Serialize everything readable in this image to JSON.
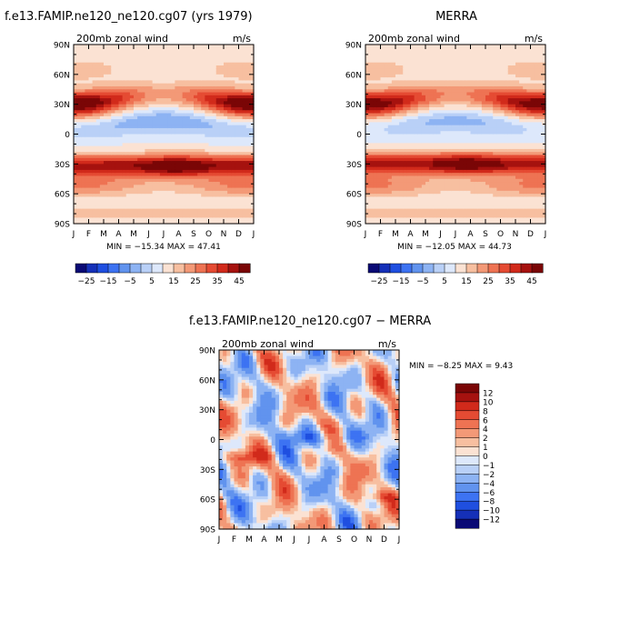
{
  "palette": {
    "diverging": [
      "#0a0a75",
      "#1530b8",
      "#1f4fe0",
      "#3d73f2",
      "#6193ee",
      "#8db3f3",
      "#b9d0f7",
      "#dde8fb",
      "#fbe2d3",
      "#f7bfa0",
      "#f39977",
      "#ee7353",
      "#e54b33",
      "#d12a1b",
      "#a6120f",
      "#7a0606"
    ]
  },
  "chart_data": [
    {
      "id": "model",
      "type": "heatmap",
      "title": "f.e13.FAMIP.ne120_ne120.cg07 (yrs 1979)",
      "subtitle_left": "200mb zonal wind",
      "subtitle_right": "m/s",
      "stats_text": "MIN = −15.34  MAX =  47.41",
      "x_ticks": [
        "J",
        "F",
        "M",
        "A",
        "M",
        "J",
        "J",
        "A",
        "S",
        "O",
        "N",
        "D",
        "J"
      ],
      "y_ticks": [
        "90N",
        "60N",
        "30N",
        "0",
        "30S",
        "60S",
        "90S"
      ],
      "y_range": [
        -90,
        90
      ],
      "x_range_months": [
        0,
        12
      ],
      "levels": [
        -35,
        -30,
        -25,
        -20,
        -15,
        -10,
        -5,
        0,
        5,
        10,
        15,
        20,
        25,
        30,
        35,
        40,
        45
      ],
      "min": -15.34,
      "max": 47.41,
      "jets": {
        "nh_peak_lat": 30,
        "nh_peak_winter": 42,
        "nh_peak_summer": 12,
        "sh_peak_lat": -32,
        "sh_peak_base": 33,
        "sh_peak_jja": 44,
        "equatorial_min_jja": -15,
        "equatorial_min_djf": -7
      }
    },
    {
      "id": "obs",
      "type": "heatmap",
      "title": "MERRA",
      "subtitle_left": "200mb zonal wind",
      "subtitle_right": "m/s",
      "stats_text": "MIN = −12.05  MAX =  44.73",
      "x_ticks": [
        "J",
        "F",
        "M",
        "A",
        "M",
        "J",
        "J",
        "A",
        "S",
        "O",
        "N",
        "D",
        "J"
      ],
      "y_ticks": [
        "90N",
        "60N",
        "30N",
        "0",
        "30S",
        "60S",
        "90S"
      ],
      "y_range": [
        -90,
        90
      ],
      "x_range_months": [
        0,
        12
      ],
      "levels": [
        -35,
        -30,
        -25,
        -20,
        -15,
        -10,
        -5,
        0,
        5,
        10,
        15,
        20,
        25,
        30,
        35,
        40,
        45
      ],
      "min": -12.05,
      "max": 44.73,
      "jets": {
        "nh_peak_lat": 30,
        "nh_peak_winter": 40,
        "nh_peak_summer": 14,
        "sh_peak_lat": -30,
        "sh_peak_base": 33,
        "sh_peak_jja": 42,
        "equatorial_min_jja": -12,
        "equatorial_min_djf": -5
      }
    },
    {
      "id": "diff",
      "type": "heatmap",
      "title": "f.e13.FAMIP.ne120_ne120.cg07 − MERRA",
      "subtitle_left": "200mb zonal wind",
      "subtitle_right": "m/s",
      "stats_text": "MIN =   −8.25  MAX =    9.43",
      "x_ticks": [
        "J",
        "F",
        "M",
        "A",
        "M",
        "J",
        "J",
        "A",
        "S",
        "O",
        "N",
        "D",
        "J"
      ],
      "y_ticks": [
        "90N",
        "60N",
        "30N",
        "0",
        "30S",
        "60S",
        "90S"
      ],
      "y_range": [
        -90,
        90
      ],
      "x_range_months": [
        0,
        12
      ],
      "levels": [
        -12,
        -10,
        -8,
        -6,
        -4,
        -2,
        -1,
        0,
        1,
        2,
        4,
        6,
        8,
        10,
        12
      ],
      "min": -8.25,
      "max": 9.43
    }
  ],
  "colorbars": {
    "top": {
      "labels": [
        "−25",
        "−15",
        "−5",
        "5",
        "15",
        "25",
        "35",
        "45"
      ]
    },
    "diff": {
      "labels": [
        "12",
        "10",
        "8",
        "6",
        "4",
        "2",
        "1",
        "0",
        "−1",
        "−2",
        "−4",
        "−6",
        "−8",
        "−10",
        "−12"
      ]
    }
  }
}
